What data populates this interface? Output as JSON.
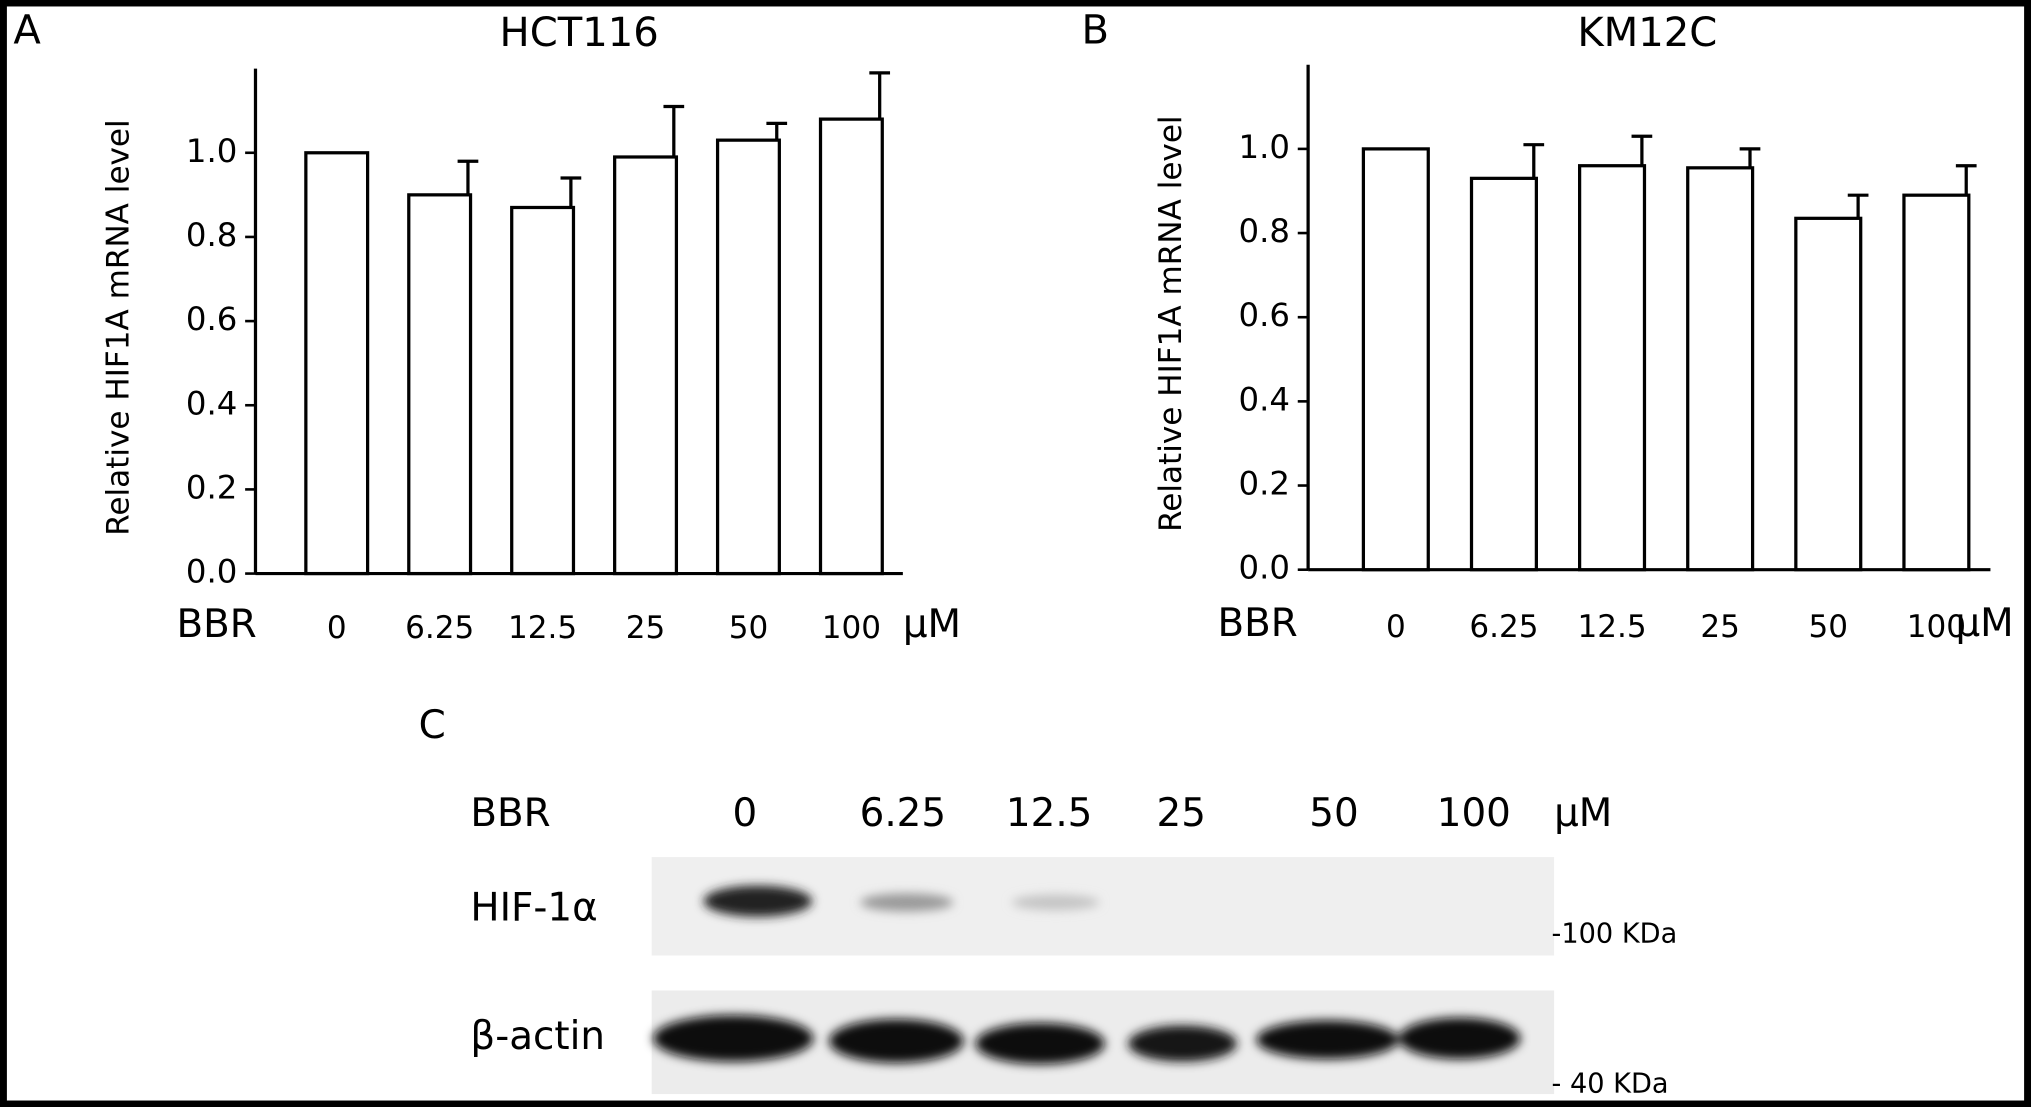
{
  "chart_data": [
    {
      "type": "bar",
      "panel": "A",
      "title": "HCT116",
      "ylabel": "Relative HIF1A mRNA level",
      "xlabel": "BBR",
      "unit": "μM",
      "categories": [
        "0",
        "6.25",
        "12.5",
        "25",
        "50",
        "100"
      ],
      "values": [
        1.0,
        0.9,
        0.87,
        0.99,
        1.03,
        1.08
      ],
      "errors": [
        null,
        0.08,
        0.07,
        0.12,
        0.04,
        0.11
      ],
      "color": "#ffffff",
      "ylim": [
        0,
        1.2
      ],
      "yticks": [
        {
          "value": 0,
          "label": "0.0"
        },
        0.2,
        0.4,
        0.6,
        0.8,
        {
          "value": 1,
          "label": "1.0"
        }
      ]
    },
    {
      "type": "bar",
      "panel": "B",
      "title": "KM12C",
      "ylabel": "Relative HIF1A mRNA level",
      "xlabel": "BBR",
      "unit": "μM",
      "categories": [
        "0",
        "6.25",
        "12.5",
        "25",
        "50",
        "100"
      ],
      "values": [
        1.0,
        0.93,
        0.96,
        0.955,
        0.835,
        0.89
      ],
      "errors": [
        null,
        0.08,
        0.07,
        0.045,
        0.055,
        0.07
      ],
      "color": "#ffffff",
      "ylim": [
        0,
        1.2
      ],
      "yticks": [
        {
          "value": 0,
          "label": "0.0"
        },
        0.2,
        0.4,
        0.6,
        0.8,
        {
          "value": 1,
          "label": "1.0"
        }
      ]
    }
  ],
  "blot": {
    "panel": "C",
    "treatment": "BBR",
    "unit": "μM",
    "doses": [
      "0",
      "6.25",
      "12.5",
      "25",
      "50",
      "100"
    ],
    "rows": [
      {
        "name": "HIF-1α",
        "marker": "-100 KDa"
      },
      {
        "name": "β-actin",
        "marker": "-  40 KDa"
      }
    ]
  }
}
